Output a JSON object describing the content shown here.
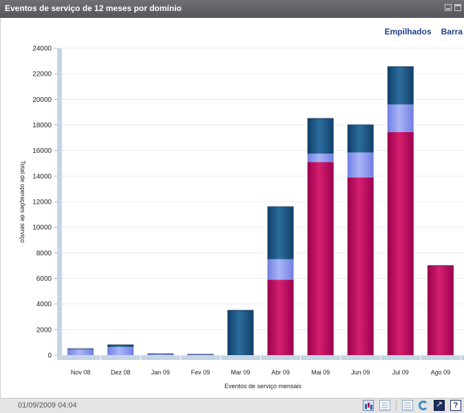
{
  "window": {
    "title": "Eventos de serviço de 12 meses por domínio"
  },
  "view_links": {
    "stacked": "Empilhados",
    "bar": "Barra"
  },
  "footer": {
    "timestamp": "01/09/2009 04:04",
    "help_label": "?"
  },
  "colors": {
    "series_a": "#1e5585",
    "series_b": "#8a98ee",
    "series_c": "#b8005e"
  },
  "chart_data": {
    "type": "bar",
    "stacked": true,
    "categories": [
      "Nov 08",
      "Dez 08",
      "Jan 09",
      "Fev 09",
      "Mar 09",
      "Abr 09",
      "Mai 09",
      "Jun 09",
      "Jul 09",
      "Ago 09"
    ],
    "series": [
      {
        "values": [
          0,
          0,
          0,
          0,
          0,
          5900,
          15100,
          13900,
          17450,
          7000
        ]
      },
      {
        "values": [
          500,
          650,
          100,
          60,
          0,
          1600,
          650,
          1950,
          2150,
          0
        ]
      },
      {
        "values": [
          0,
          150,
          0,
          0,
          3500,
          4100,
          2750,
          2150,
          2950,
          0
        ]
      }
    ],
    "xlabel": "Eventos de serviço mensais",
    "ylabel": "Total de operações de serviço",
    "ylim": [
      0,
      24000
    ],
    "yticks": [
      0,
      2000,
      4000,
      6000,
      8000,
      10000,
      12000,
      14000,
      16000,
      18000,
      20000,
      22000,
      24000
    ],
    "grid": true
  }
}
